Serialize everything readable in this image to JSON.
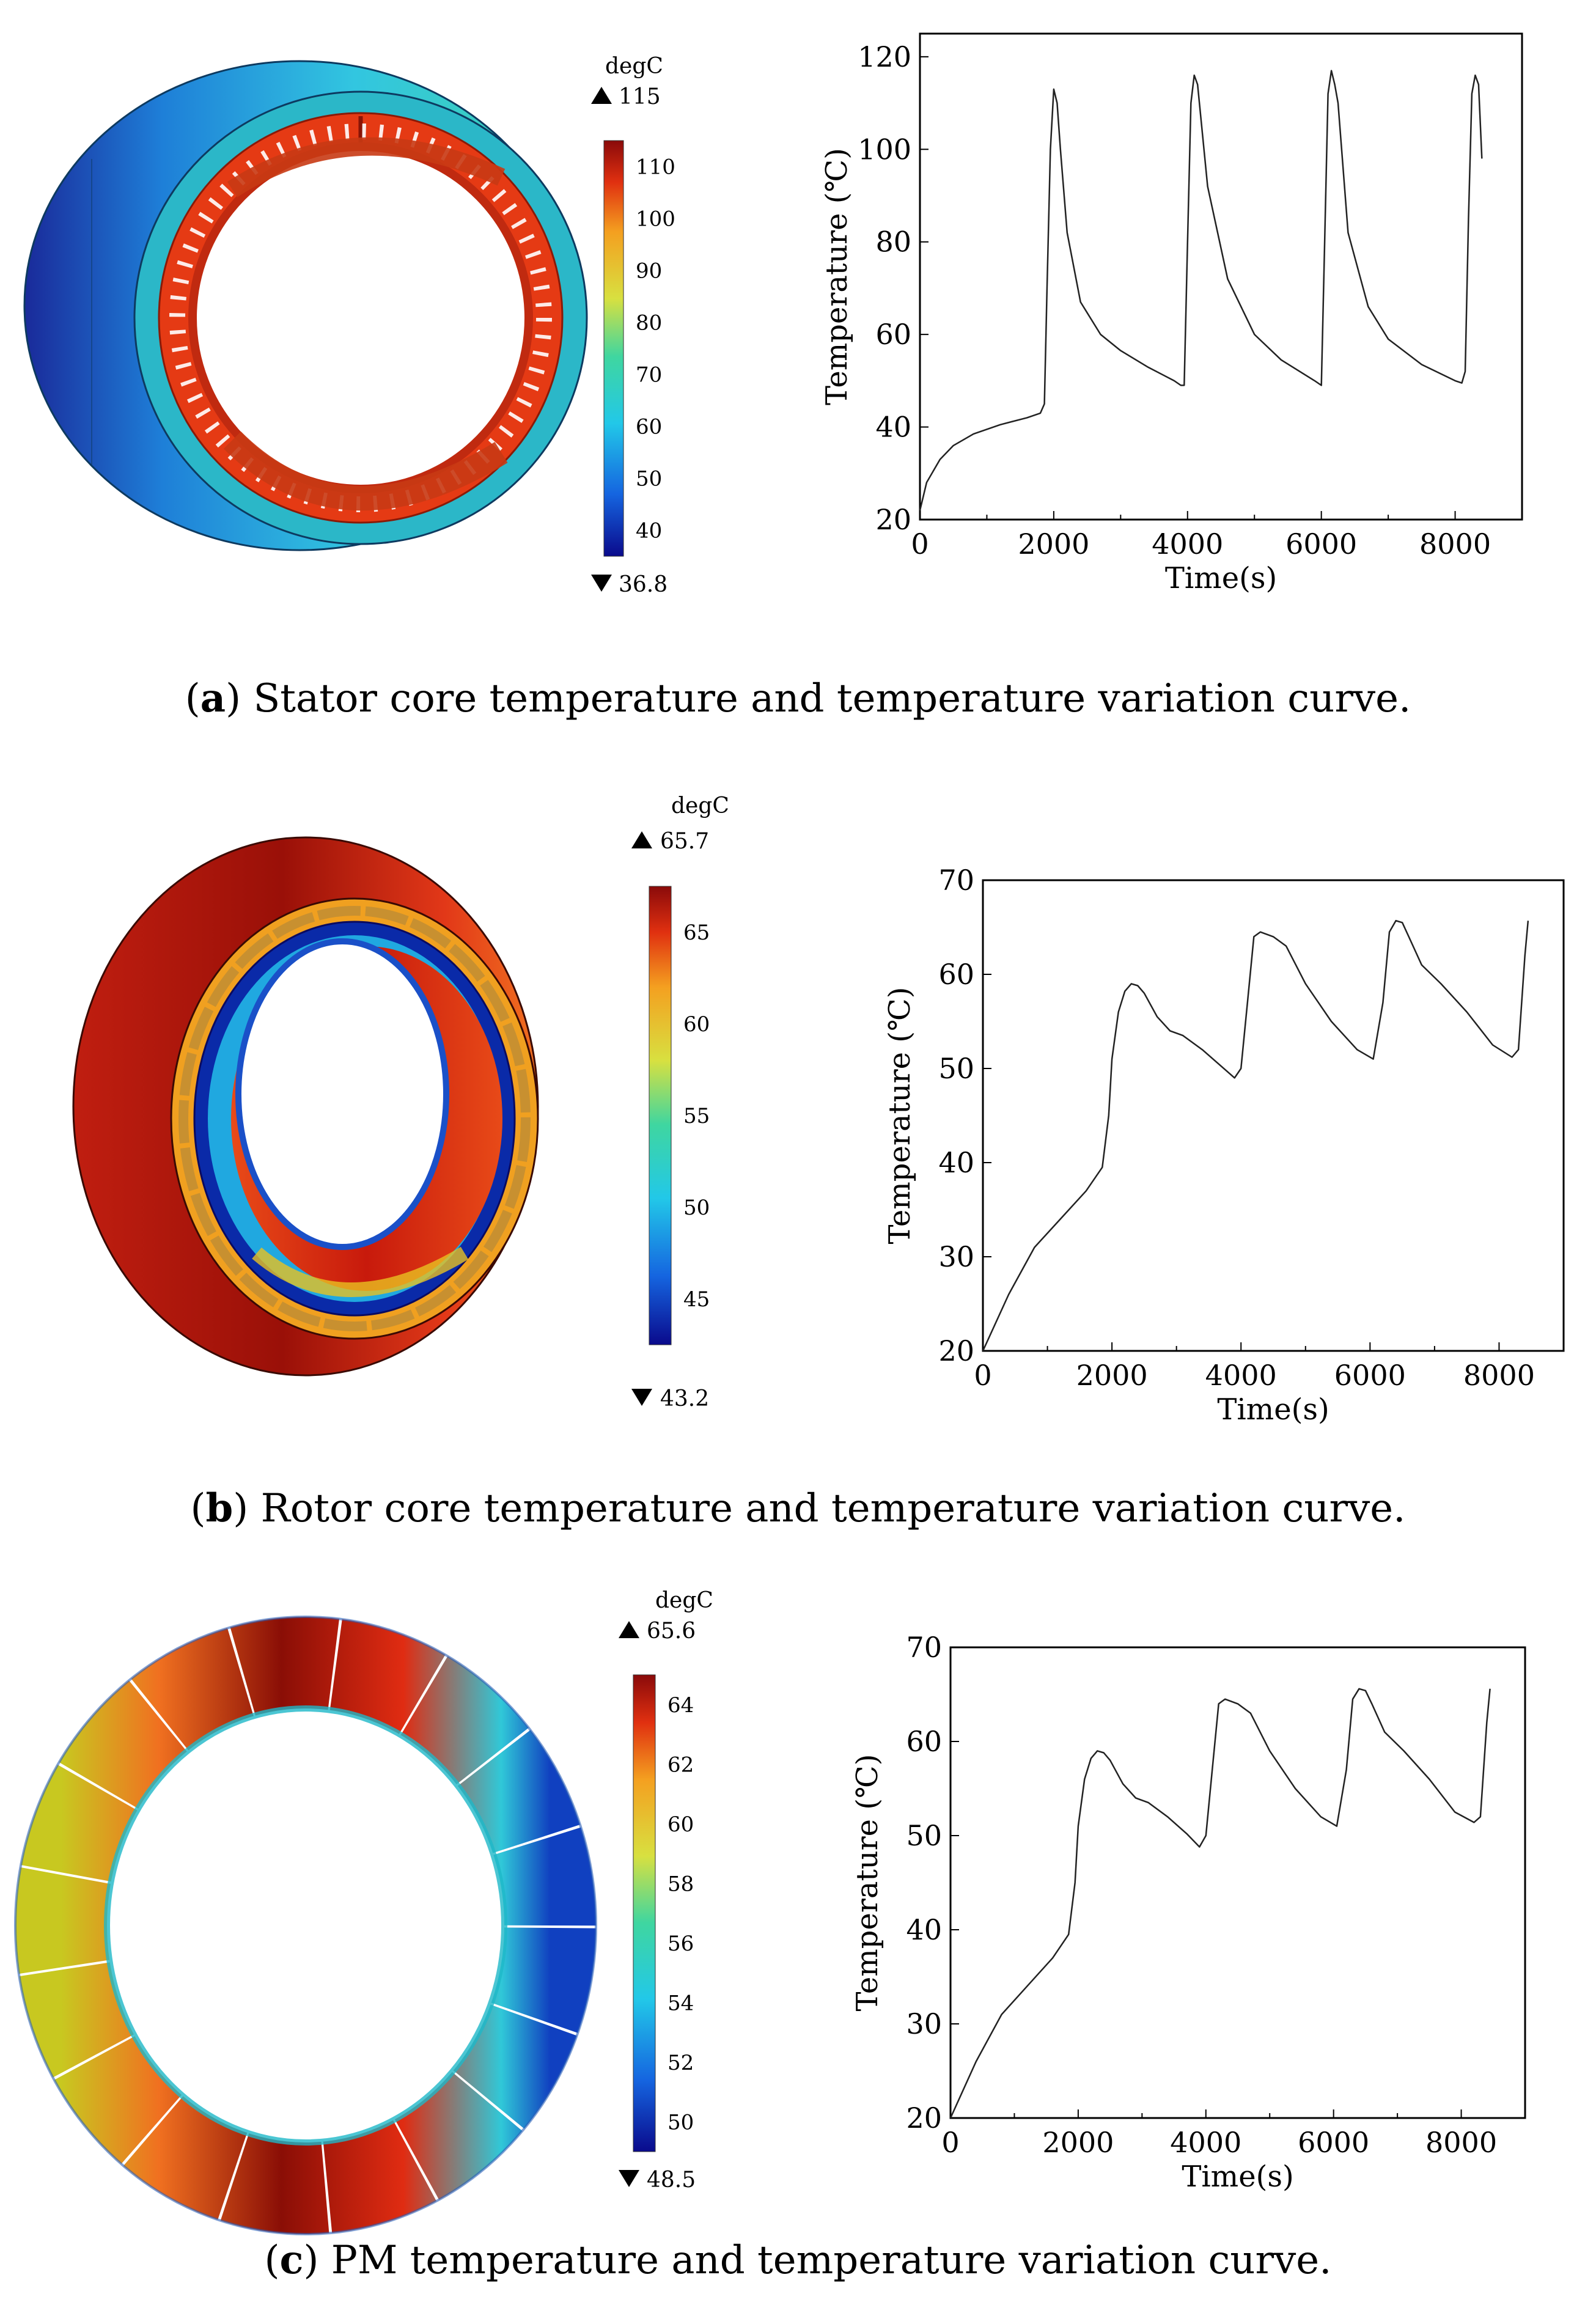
{
  "panels": [
    {
      "id": "a",
      "caption_letter": "a",
      "caption_text": " Stator core temperature and temperature variation curve.",
      "colorbar": {
        "unit": "degC",
        "max_label": "115",
        "min_label": "36.8",
        "ticks": [
          "110",
          "100",
          "90",
          "80",
          "70",
          "60",
          "50",
          "40"
        ]
      },
      "icon": "stator-core-3d-thermal-render"
    },
    {
      "id": "b",
      "caption_letter": "b",
      "caption_text": " Rotor core temperature and temperature variation curve.",
      "colorbar": {
        "unit": "degC",
        "max_label": "65.7",
        "min_label": "43.2",
        "ticks": [
          "65",
          "60",
          "55",
          "50",
          "45"
        ]
      },
      "icon": "rotor-core-3d-thermal-render"
    },
    {
      "id": "c",
      "caption_letter": "c",
      "caption_text": " PM temperature and temperature variation curve.",
      "colorbar": {
        "unit": "degC",
        "max_label": "65.6",
        "min_label": "48.5",
        "ticks": [
          "64",
          "62",
          "60",
          "58",
          "56",
          "54",
          "52",
          "50"
        ]
      },
      "icon": "pm-segments-3d-thermal-render"
    }
  ],
  "chart_data": [
    {
      "type": "line",
      "title": "",
      "xlabel": "Time(s)",
      "ylabel": "Temperature (℃)",
      "xlim": [
        0,
        9000
      ],
      "ylim": [
        20,
        125
      ],
      "xticks": [
        0,
        2000,
        4000,
        6000,
        8000
      ],
      "yticks": [
        20,
        40,
        60,
        80,
        100,
        120
      ],
      "series": [
        {
          "name": "Stator core",
          "x": [
            0,
            100,
            300,
            500,
            800,
            1200,
            1600,
            1800,
            1860,
            1900,
            1950,
            2000,
            2050,
            2100,
            2200,
            2400,
            2700,
            3000,
            3400,
            3800,
            3900,
            3950,
            4000,
            4050,
            4100,
            4150,
            4300,
            4600,
            5000,
            5400,
            5900,
            6000,
            6050,
            6100,
            6150,
            6200,
            6250,
            6400,
            6700,
            7000,
            7500,
            8000,
            8100,
            8150,
            8200,
            8250,
            8300,
            8350,
            8400
          ],
          "y": [
            22,
            28,
            33,
            36,
            38.5,
            40.5,
            42,
            43,
            45,
            70,
            100,
            113,
            110,
            100,
            82,
            67,
            60,
            56.5,
            53,
            50,
            49,
            49,
            80,
            110,
            116,
            114,
            92,
            72,
            60,
            54.5,
            50,
            49,
            80,
            112,
            117,
            114,
            110,
            82,
            66,
            59,
            53.5,
            50,
            49.5,
            52,
            85,
            112,
            116,
            114,
            98
          ]
        }
      ]
    },
    {
      "type": "line",
      "title": "",
      "xlabel": "Time(s)",
      "ylabel": "Temperature (℃)",
      "xlim": [
        0,
        9000
      ],
      "ylim": [
        20,
        70
      ],
      "xticks": [
        0,
        2000,
        4000,
        6000,
        8000
      ],
      "yticks": [
        20,
        30,
        40,
        50,
        60,
        70
      ],
      "series": [
        {
          "name": "Rotor core",
          "x": [
            0,
            400,
            800,
            1200,
            1600,
            1850,
            1950,
            2000,
            2100,
            2200,
            2300,
            2400,
            2500,
            2700,
            2900,
            3100,
            3400,
            3700,
            3900,
            4000,
            4100,
            4200,
            4300,
            4500,
            4700,
            5000,
            5400,
            5800,
            6050,
            6200,
            6300,
            6400,
            6500,
            6600,
            6800,
            7100,
            7500,
            7900,
            8200,
            8300,
            8400,
            8450
          ],
          "y": [
            20,
            26,
            31,
            34,
            37,
            39.5,
            45,
            51,
            56,
            58.2,
            59,
            58.8,
            58,
            55.5,
            54,
            53.5,
            52,
            50.2,
            49,
            50,
            57,
            64,
            64.5,
            64,
            63,
            59,
            55,
            52,
            51,
            57,
            64.5,
            65.7,
            65.5,
            64,
            61,
            59,
            56,
            52.5,
            51.2,
            52,
            62,
            65.7
          ]
        }
      ]
    },
    {
      "type": "line",
      "title": "",
      "xlabel": "Time(s)",
      "ylabel": "Temperature (℃)",
      "xlim": [
        0,
        9000
      ],
      "ylim": [
        20,
        70
      ],
      "xticks": [
        0,
        2000,
        4000,
        6000,
        8000
      ],
      "yticks": [
        20,
        30,
        40,
        50,
        60,
        70
      ],
      "series": [
        {
          "name": "PM",
          "x": [
            0,
            400,
            800,
            1200,
            1600,
            1850,
            1950,
            2000,
            2100,
            2200,
            2300,
            2400,
            2500,
            2700,
            2900,
            3100,
            3400,
            3700,
            3900,
            4000,
            4100,
            4200,
            4300,
            4500,
            4700,
            5000,
            5400,
            5800,
            6050,
            6200,
            6300,
            6400,
            6500,
            6600,
            6800,
            7100,
            7500,
            7900,
            8200,
            8300,
            8400,
            8450
          ],
          "y": [
            20,
            26,
            31,
            34,
            37,
            39.5,
            45,
            51,
            56,
            58.2,
            59,
            58.8,
            58,
            55.5,
            54,
            53.5,
            52,
            50.2,
            48.8,
            50,
            57,
            64,
            64.5,
            64,
            63,
            59,
            55,
            52,
            51,
            57,
            64.5,
            65.6,
            65.4,
            64,
            61,
            59,
            56,
            52.5,
            51.4,
            52,
            62,
            65.6
          ]
        }
      ]
    }
  ]
}
